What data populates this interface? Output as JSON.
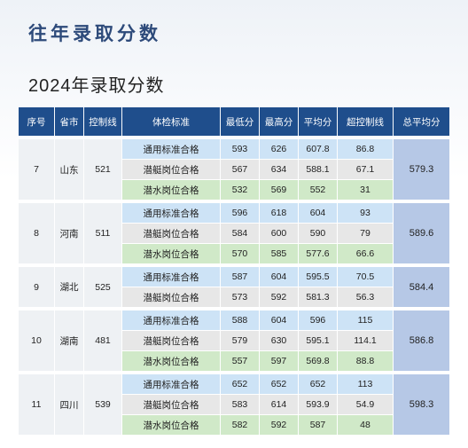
{
  "page_title": "往年录取分数",
  "section_title": "2024年录取分数",
  "headers": {
    "seq": "序号",
    "province": "省市",
    "control": "控制线",
    "standard": "体检标准",
    "min": "最低分",
    "max": "最高分",
    "mean": "平均分",
    "over": "超控制线",
    "total_avg": "总平均分"
  },
  "groups": [
    {
      "seq": "7",
      "province": "山东",
      "control": "521",
      "total_avg": "579.3",
      "rows": [
        {
          "standard": "通用标准合格",
          "min": "593",
          "max": "626",
          "mean": "607.8",
          "over": "86.8"
        },
        {
          "standard": "潜艇岗位合格",
          "min": "567",
          "max": "634",
          "mean": "588.1",
          "over": "67.1"
        },
        {
          "standard": "潜水岗位合格",
          "min": "532",
          "max": "569",
          "mean": "552",
          "over": "31"
        }
      ]
    },
    {
      "seq": "8",
      "province": "河南",
      "control": "511",
      "total_avg": "589.6",
      "rows": [
        {
          "standard": "通用标准合格",
          "min": "596",
          "max": "618",
          "mean": "604",
          "over": "93"
        },
        {
          "standard": "潜艇岗位合格",
          "min": "584",
          "max": "600",
          "mean": "590",
          "over": "79"
        },
        {
          "standard": "潜水岗位合格",
          "min": "570",
          "max": "585",
          "mean": "577.6",
          "over": "66.6"
        }
      ]
    },
    {
      "seq": "9",
      "province": "湖北",
      "control": "525",
      "total_avg": "584.4",
      "rows": [
        {
          "standard": "通用标准合格",
          "min": "587",
          "max": "604",
          "mean": "595.5",
          "over": "70.5"
        },
        {
          "standard": "潜艇岗位合格",
          "min": "573",
          "max": "592",
          "mean": "581.3",
          "over": "56.3"
        }
      ]
    },
    {
      "seq": "10",
      "province": "湖南",
      "control": "481",
      "total_avg": "586.8",
      "rows": [
        {
          "standard": "通用标准合格",
          "min": "588",
          "max": "604",
          "mean": "596",
          "over": "115"
        },
        {
          "standard": "潜艇岗位合格",
          "min": "579",
          "max": "630",
          "mean": "595.1",
          "over": "114.1"
        },
        {
          "standard": "潜水岗位合格",
          "min": "557",
          "max": "597",
          "mean": "569.8",
          "over": "88.8"
        }
      ]
    },
    {
      "seq": "11",
      "province": "四川",
      "control": "539",
      "total_avg": "598.3",
      "rows": [
        {
          "standard": "通用标准合格",
          "min": "652",
          "max": "652",
          "mean": "652",
          "over": "113"
        },
        {
          "standard": "潜艇岗位合格",
          "min": "583",
          "max": "614",
          "mean": "593.9",
          "over": "54.9"
        },
        {
          "standard": "潜水岗位合格",
          "min": "582",
          "max": "592",
          "mean": "587",
          "over": "48"
        }
      ]
    }
  ]
}
